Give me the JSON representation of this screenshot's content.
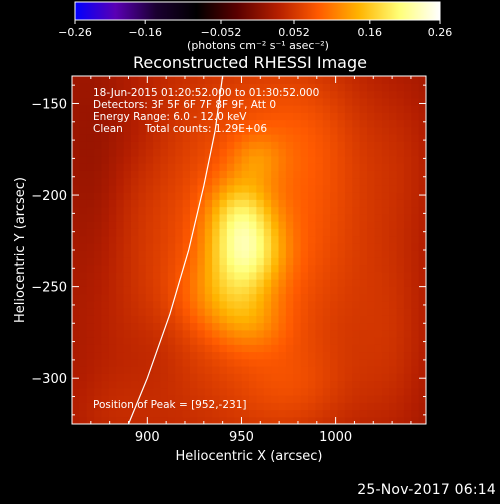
{
  "chart_data": {
    "type": "heatmap",
    "title": "Reconstructed RHESSI Image",
    "xlabel": "Heliocentric X (arcsec)",
    "ylabel": "Heliocentric Y (arcsec)",
    "xlim": [
      860,
      1048
    ],
    "ylim": [
      -325,
      -135
    ],
    "x_ticks": [
      900,
      950,
      1000
    ],
    "x_tick_labels": [
      "900",
      "950",
      "1000"
    ],
    "y_ticks": [
      -150,
      -200,
      -250,
      -300
    ],
    "y_tick_labels": [
      "−150",
      "−200",
      "−250",
      "−300"
    ],
    "colorbar": {
      "range": [
        -0.26,
        0.26
      ],
      "ticks": [
        -0.26,
        -0.16,
        -0.052,
        0.052,
        0.16,
        0.26
      ],
      "tick_labels": [
        "−0.26",
        "−0.16",
        "−0.052",
        "0.052",
        "0.16",
        "0.26"
      ],
      "unit_label": "(photons cm⁻² s⁻¹ asec⁻²)",
      "colormap": [
        "#0000ff",
        "#5a00b4",
        "#1a0030",
        "#000000",
        "#5a0000",
        "#b41e00",
        "#ff5a00",
        "#ffb400",
        "#ffff78",
        "#ffffff"
      ]
    },
    "annotations": {
      "time_range": "18-Jun-2015 01:20:52.000 to 01:30:52.000",
      "detectors": "Detectors: 3F 5F 6F 7F 8F 9F, Att 0",
      "energy_range": "Energy Range: 6.0 - 12.0 keV",
      "algorithm": "Clean",
      "total_counts": "Total counts: 1.29E+06",
      "peak": "Position of Peak = [952,-231]"
    },
    "peak_position": [
      952,
      -231
    ],
    "sources": [
      {
        "x": 952,
        "y": -231,
        "amp": 0.12,
        "sx": 14,
        "sy": 16
      },
      {
        "x": 949,
        "y": -208,
        "amp": 0.07,
        "sx": 12,
        "sy": 14
      },
      {
        "x": 940,
        "y": -255,
        "amp": 0.045,
        "sx": 16,
        "sy": 14
      },
      {
        "x": 955,
        "y": -270,
        "amp": 0.04,
        "sx": 14,
        "sy": 12
      },
      {
        "x": 958,
        "y": -180,
        "amp": 0.035,
        "sx": 10,
        "sy": 10
      },
      {
        "x": 948,
        "y": -225,
        "amp": 0.07,
        "sx": 55,
        "sy": 90
      },
      {
        "x": 975,
        "y": -165,
        "amp": 0.02,
        "sx": 24,
        "sy": 24
      },
      {
        "x": 992,
        "y": -200,
        "amp": 0.018,
        "sx": 20,
        "sy": 50
      },
      {
        "x": 978,
        "y": -305,
        "amp": 0.025,
        "sx": 22,
        "sy": 18
      },
      {
        "x": 1030,
        "y": -280,
        "amp": 0.02,
        "sx": 14,
        "sy": 40
      },
      {
        "x": 1035,
        "y": -180,
        "amp": 0.014,
        "sx": 14,
        "sy": 30
      },
      {
        "x": 880,
        "y": -320,
        "amp": 0.014,
        "sx": 18,
        "sy": 16
      },
      {
        "x": 872,
        "y": -190,
        "amp": -0.018,
        "sx": 12,
        "sy": 45
      },
      {
        "x": 895,
        "y": -165,
        "amp": -0.01,
        "sx": 14,
        "sy": 20
      },
      {
        "x": 905,
        "y": -285,
        "amp": -0.008,
        "sx": 12,
        "sy": 18
      }
    ],
    "background": 0.008,
    "limb": [
      [
        890,
        -325
      ],
      [
        900,
        -300
      ],
      [
        912,
        -265
      ],
      [
        922,
        -230
      ],
      [
        930,
        -195
      ],
      [
        936,
        -165
      ],
      [
        940,
        -135
      ]
    ]
  },
  "footer": {
    "date": "25-Nov-2017 06:14"
  }
}
